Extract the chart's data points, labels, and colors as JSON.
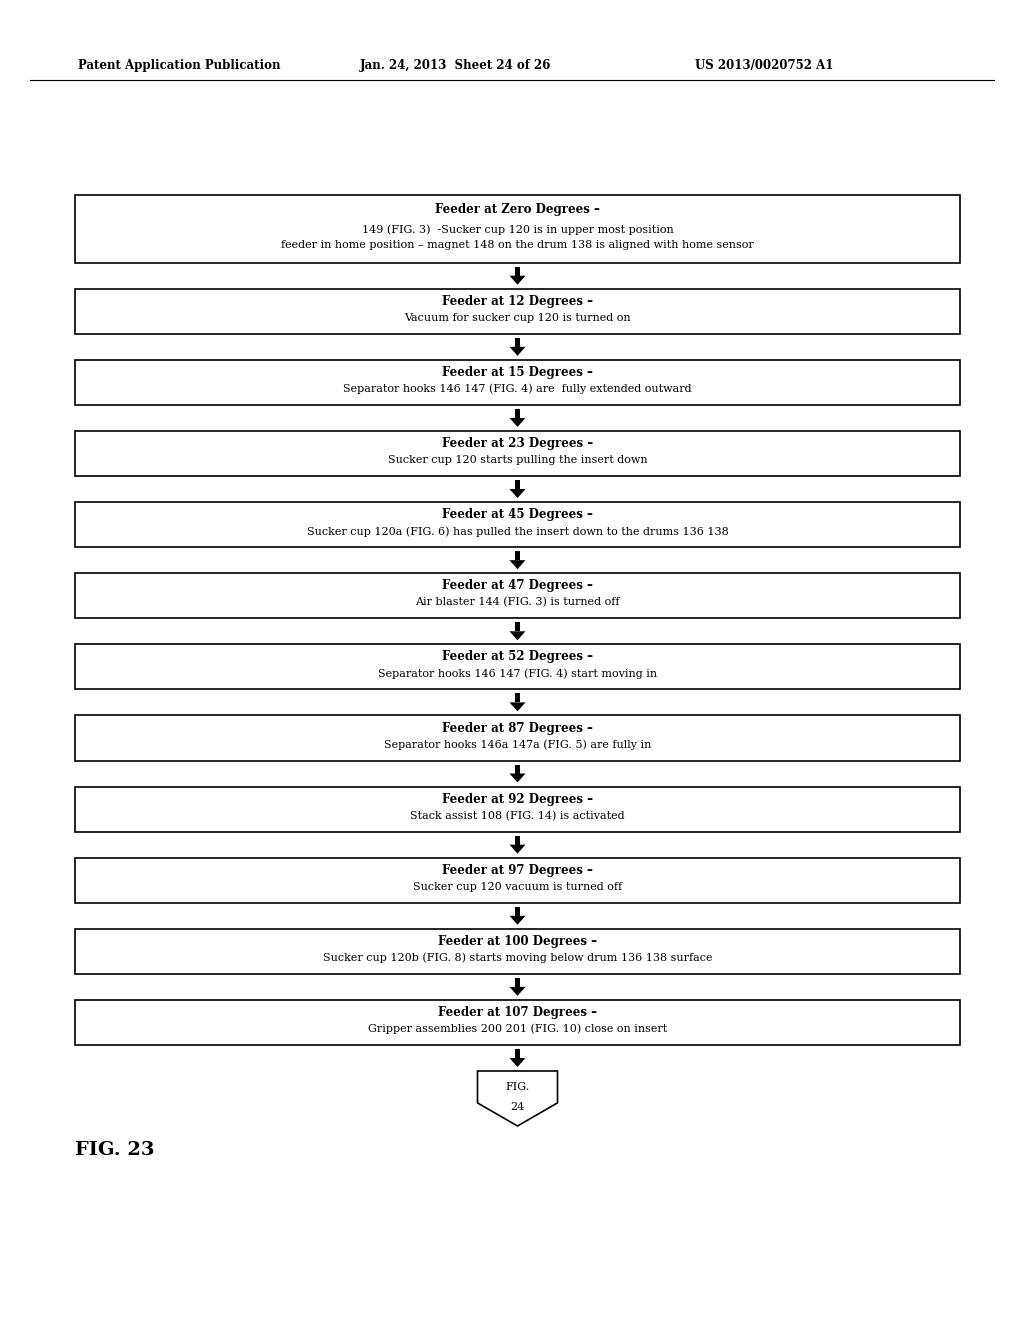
{
  "header_left": "Patent Application Publication",
  "header_mid": "Jan. 24, 2013  Sheet 24 of 26",
  "header_right": "US 2013/0020752 A1",
  "fig_label": "FIG. 23",
  "background_color": "#ffffff",
  "box_edge": "#000000",
  "boxes": [
    {
      "title": "Feeder at Zero Degrees –",
      "body": "feeder in home position – magnet 148 on the drum 138 is aligned with home sensor\n149 (FIG. 3)  -Sucker cup 120 is in upper most position",
      "nlines": 3
    },
    {
      "title": "Feeder at 12 Degrees –",
      "body": "Vacuum for sucker cup 120 is turned on",
      "nlines": 2
    },
    {
      "title": "Feeder at 15 Degrees –",
      "body": "Separator hooks 146 147 (FIG. 4) are  fully extended outward",
      "nlines": 2
    },
    {
      "title": "Feeder at 23 Degrees –",
      "body": "Sucker cup 120 starts pulling the insert down",
      "nlines": 2
    },
    {
      "title": "Feeder at 45 Degrees –",
      "body": "Sucker cup 120a (FIG. 6) has pulled the insert down to the drums 136 138",
      "nlines": 2
    },
    {
      "title": "Feeder at 47 Degrees –",
      "body": "Air blaster 144 (FIG. 3) is turned off",
      "nlines": 2
    },
    {
      "title": "Feeder at 52 Degrees –",
      "body": "Separator hooks 146 147 (FIG. 4) start moving in",
      "nlines": 2
    },
    {
      "title": "Feeder at 87 Degrees –",
      "body": "Separator hooks 146a 147a (FIG. 5) are fully in",
      "nlines": 2
    },
    {
      "title": "Feeder at 92 Degrees –",
      "body": "Stack assist 108 (FIG. 14) is activated",
      "nlines": 2
    },
    {
      "title": "Feeder at 97 Degrees –",
      "body": "Sucker cup 120 vacuum is turned off",
      "nlines": 2
    },
    {
      "title": "Feeder at 100 Degrees –",
      "body": "Sucker cup 120b (FIG. 8) starts moving below drum 136 138 surface",
      "nlines": 2
    },
    {
      "title": "Feeder at 107 Degrees –",
      "body": "Gripper assemblies 200 201 (FIG. 10) close on insert",
      "nlines": 2
    }
  ]
}
